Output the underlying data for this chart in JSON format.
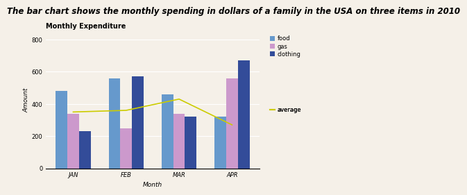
{
  "title": "The bar chart shows the monthly spending in dollars of a family in the USA on three items in 2010",
  "chart_title": "Monthly Expenditure",
  "xlabel": "Month",
  "ylabel": "Amount",
  "months": [
    "JAN",
    "FEB",
    "MAR",
    "APR"
  ],
  "food": [
    480,
    560,
    460,
    320
  ],
  "gas": [
    340,
    250,
    340,
    560
  ],
  "clothing": [
    230,
    570,
    320,
    670
  ],
  "average": [
    350,
    360,
    430,
    270
  ],
  "food_color": "#6699CC",
  "gas_color": "#CC99CC",
  "clothing_color": "#334C99",
  "average_color": "#CCCC00",
  "bg_color": "#F5F0E8",
  "ylim": [
    0,
    850
  ],
  "yticks": [
    0,
    200,
    400,
    600,
    800
  ],
  "bar_width": 0.22,
  "title_fontsize": 8.5,
  "chart_title_fontsize": 7,
  "axis_label_fontsize": 6.5,
  "tick_fontsize": 6,
  "legend_fontsize": 6
}
